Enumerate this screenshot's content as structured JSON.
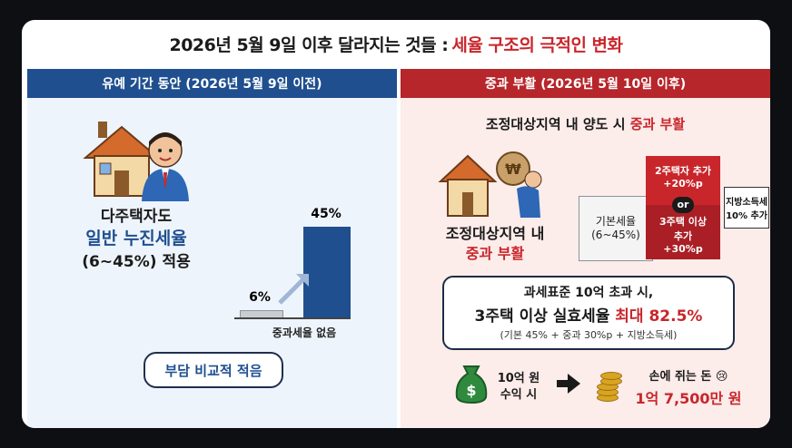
{
  "title": {
    "main": "2026년 5월 9일 이후 달라지는 것들 :",
    "highlight": "세율 구조의 극적인 변화"
  },
  "left": {
    "band": "유예 기간 동안 (2026년 5월 9일 이전)",
    "line1": "다주택자도",
    "line2": "일반 누진세율",
    "line3": "(6~45%) 적용",
    "bar_low_label": "6%",
    "bar_high_label": "45%",
    "bar_low_value": 6,
    "bar_high_value": 45,
    "axis_caption": "중과세율 없음",
    "bubble": "부담 비교적 적음"
  },
  "right": {
    "band": "중과 부활 (2026년 5월 10일 이후)",
    "headline_pre": "조정대상지역 내 양도 시",
    "headline_red": "중과 부활",
    "house_line1": "조정대상지역 내",
    "house_line2": "중과 부활",
    "money_bag_sign": "₩",
    "base_label1": "기본세율",
    "base_label2": "(6~45%)",
    "top_label1": "2주택자 추가",
    "top_label2": "+20%p",
    "or_label": "or",
    "mid_label1": "3주택 이상",
    "mid_label2": "추가",
    "mid_label3": "+30%p",
    "local_label1": "지방소득세",
    "local_label2": "10% 추가",
    "box_line1": "과세표준 10억 초과 시,",
    "box_line2_pre": "3주택 이상 실효세율",
    "box_line2_red": "최대 82.5%",
    "box_line3": "(기본 45% + 중과 30%p + 지방소득세)",
    "income1": "10억 원",
    "income2": "수익 시",
    "dollar_sign": "$",
    "result1": "손에 쥐는 돈",
    "result_emoji": "😢",
    "result2": "1억 7,500만 원"
  },
  "colors": {
    "navy": "#1f4f8f",
    "red": "#b6262b",
    "gray_bar": "#c9ccd1"
  }
}
